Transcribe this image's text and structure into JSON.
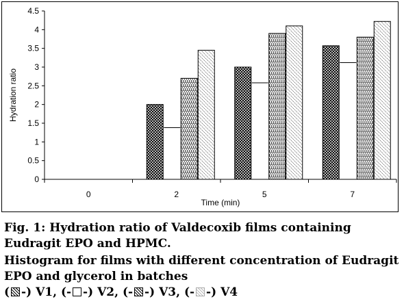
{
  "chart_data": {
    "type": "bar",
    "categories": [
      "0",
      "2",
      "5",
      "7"
    ],
    "xlabel": "Time (min)",
    "ylabel": "Hydration ratio",
    "ylim": [
      0,
      4.5
    ],
    "yticks": [
      "0",
      "0.5",
      "1",
      "1.5",
      "2",
      "2.5",
      "3",
      "3.5",
      "4",
      "4.5"
    ],
    "series": [
      {
        "name": "V1",
        "values": [
          0,
          2.0,
          3.0,
          3.57
        ],
        "pattern": "crosshatch"
      },
      {
        "name": "V2",
        "values": [
          0,
          1.38,
          2.58,
          3.12
        ],
        "pattern": "plain"
      },
      {
        "name": "V3",
        "values": [
          0,
          2.7,
          3.9,
          3.8
        ],
        "pattern": "dense-vertical"
      },
      {
        "name": "V4",
        "values": [
          0,
          3.45,
          4.1,
          4.22
        ],
        "pattern": "light-diagonal"
      }
    ],
    "grid": false,
    "legend": "below chart in caption"
  },
  "caption": {
    "line1": "Fig. 1: Hydration ratio of Valdecoxib films containing Eudragit EPO and HPMC.",
    "line2": "Histogram for films with different concentration of Eudragit EPO and glycerol in batches",
    "legend_items": [
      {
        "prefix": "(",
        "suffix": "-) V1,"
      },
      {
        "prefix": " (-",
        "suffix": "-) V2,"
      },
      {
        "prefix": " (-",
        "suffix": "-) V3,"
      },
      {
        "prefix": " (-",
        "suffix": "-) V4"
      }
    ]
  }
}
